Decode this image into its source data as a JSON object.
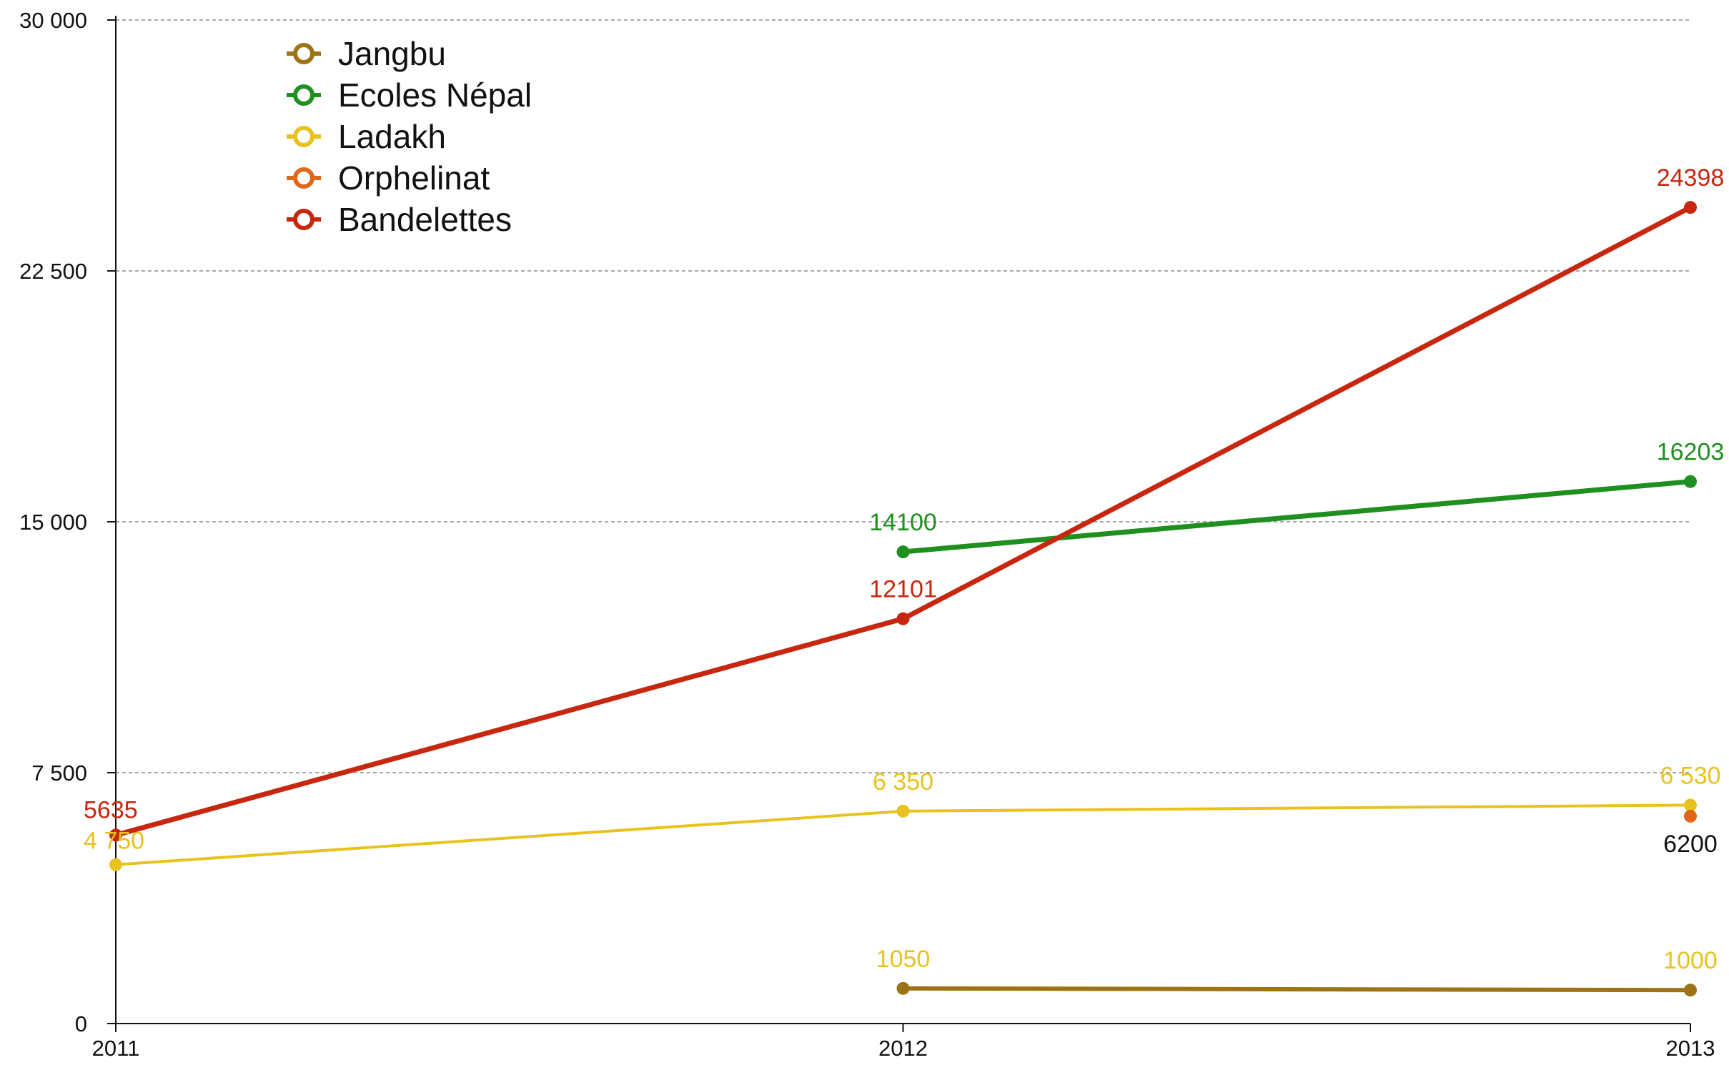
{
  "chart_data": {
    "type": "line",
    "x": [
      "2011",
      "2012",
      "2013"
    ],
    "ylim": [
      0,
      30000
    ],
    "y_ticks": [
      {
        "value": 0,
        "label": "0"
      },
      {
        "value": 7500,
        "label": "7 500"
      },
      {
        "value": 15000,
        "label": "15 000"
      },
      {
        "value": 22500,
        "label": "22 500"
      },
      {
        "value": 30000,
        "label": "30 000"
      }
    ],
    "grid": "horizontal dashed",
    "legend_position": "top-left",
    "series": [
      {
        "name": "Jangbu",
        "color": "#9c7416",
        "values": [
          null,
          1050,
          1000
        ],
        "labels": [
          null,
          "1050",
          "1000"
        ],
        "label_color": "#e8c21e"
      },
      {
        "name": "Ecoles Népal",
        "color": "#1f8f1f",
        "values": [
          null,
          14100,
          16203
        ],
        "labels": [
          null,
          "14100",
          "16203"
        ],
        "label_color": "#1f8f1f"
      },
      {
        "name": "Ladakh",
        "color": "#e8c21e",
        "values": [
          4750,
          6350,
          6530
        ],
        "labels": [
          "4 750",
          "6 350",
          "6 530"
        ],
        "label_color": "#e8c21e"
      },
      {
        "name": "Orphelinat",
        "color": "#e0661a",
        "values": [
          null,
          null,
          6200
        ],
        "labels": [
          null,
          null,
          "6200"
        ],
        "label_color": "#111111"
      },
      {
        "name": "Bandelettes",
        "color": "#c8270f",
        "values": [
          5635,
          12101,
          24398
        ],
        "labels": [
          "5635",
          "12101",
          "24398"
        ],
        "label_color": "#c8270f"
      }
    ]
  }
}
